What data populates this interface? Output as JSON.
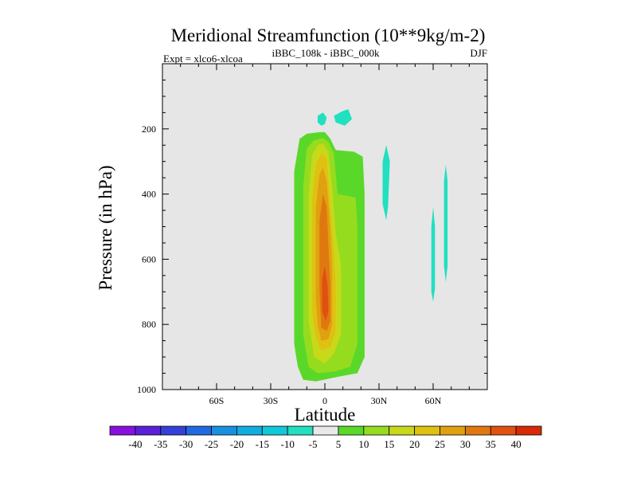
{
  "chart_data": {
    "type": "contour",
    "title": "Meridional Streamfunction (10**9kg/m-2)",
    "subtitle_left": "Expt = xlco6-xlcoa",
    "subtitle_center": "iBBC_108k - iBBC_000k",
    "subtitle_right": "DJF",
    "xlabel": "Latitude",
    "ylabel": "Pressure (in hPa)",
    "xlim": [
      -90,
      90
    ],
    "ylim": [
      1000,
      0
    ],
    "x_ticks": [
      {
        "value": -60,
        "label": "60S"
      },
      {
        "value": -30,
        "label": "30S"
      },
      {
        "value": 0,
        "label": "0"
      },
      {
        "value": 30,
        "label": "30N"
      },
      {
        "value": 60,
        "label": "60N"
      }
    ],
    "y_ticks": [
      {
        "value": 200,
        "label": "200"
      },
      {
        "value": 400,
        "label": "400"
      },
      {
        "value": 600,
        "label": "600"
      },
      {
        "value": 800,
        "label": "800"
      },
      {
        "value": 1000,
        "label": "1000"
      }
    ],
    "colorbar": {
      "labels": [
        "-40",
        "-35",
        "-30",
        "-25",
        "-20",
        "-15",
        "-10",
        "-5",
        "5",
        "10",
        "15",
        "20",
        "25",
        "30",
        "35",
        "40"
      ],
      "colors": [
        "#8a10e0",
        "#5a1fd8",
        "#3440d8",
        "#1f6ae0",
        "#1890e0",
        "#10aee0",
        "#10c8d8",
        "#20e0c0",
        "#e8e8e8",
        "#5ad82a",
        "#96dc1e",
        "#c8d81a",
        "#e0c010",
        "#e0a010",
        "#e07810",
        "#e05010",
        "#d82a08"
      ]
    },
    "regions": [
      {
        "level": 5,
        "color": "#5ad82a",
        "points": [
          [
            -17,
            860
          ],
          [
            -17,
            330
          ],
          [
            -14,
            230
          ],
          [
            -10,
            215
          ],
          [
            -3,
            210
          ],
          [
            0,
            210
          ],
          [
            3,
            230
          ],
          [
            6,
            265
          ],
          [
            16,
            270
          ],
          [
            21,
            285
          ],
          [
            22,
            400
          ],
          [
            22,
            900
          ],
          [
            18,
            950
          ],
          [
            8,
            960
          ],
          [
            -5,
            975
          ],
          [
            -12,
            970
          ],
          [
            -15,
            930
          ]
        ]
      },
      {
        "level": 10,
        "color": "#96dc1e",
        "points": [
          [
            -12,
            830
          ],
          [
            -12,
            380
          ],
          [
            -10,
            260
          ],
          [
            -6,
            235
          ],
          [
            -1,
            228
          ],
          [
            2,
            240
          ],
          [
            5,
            275
          ],
          [
            7,
            400
          ],
          [
            17,
            410
          ],
          [
            18,
            500
          ],
          [
            18,
            860
          ],
          [
            14,
            930
          ],
          [
            5,
            945
          ],
          [
            -4,
            950
          ],
          [
            -9,
            930
          ]
        ]
      },
      {
        "level": 15,
        "color": "#c8d81a",
        "points": [
          [
            -9,
            790
          ],
          [
            -9,
            400
          ],
          [
            -7,
            280
          ],
          [
            -4,
            250
          ],
          [
            -1,
            245
          ],
          [
            2,
            270
          ],
          [
            4,
            380
          ],
          [
            6,
            520
          ],
          [
            9,
            620
          ],
          [
            9,
            830
          ],
          [
            5,
            890
          ],
          [
            0,
            920
          ],
          [
            -6,
            900
          ]
        ]
      },
      {
        "level": 20,
        "color": "#e0c010",
        "points": [
          [
            -7,
            760
          ],
          [
            -7,
            420
          ],
          [
            -5,
            310
          ],
          [
            -2,
            275
          ],
          [
            1,
            290
          ],
          [
            3,
            440
          ],
          [
            5,
            580
          ],
          [
            6,
            680
          ],
          [
            6,
            820
          ],
          [
            3,
            870
          ],
          [
            -2,
            880
          ],
          [
            -5,
            840
          ]
        ]
      },
      {
        "level": 25,
        "color": "#e0a010",
        "points": [
          [
            -5,
            720
          ],
          [
            -5,
            440
          ],
          [
            -3,
            340
          ],
          [
            -1,
            320
          ],
          [
            1,
            360
          ],
          [
            3,
            500
          ],
          [
            4,
            620
          ],
          [
            4,
            800
          ],
          [
            2,
            845
          ],
          [
            -2,
            850
          ],
          [
            -4,
            800
          ]
        ]
      },
      {
        "level": 30,
        "color": "#e07810",
        "points": [
          [
            -3,
            690
          ],
          [
            -3,
            480
          ],
          [
            -1,
            400
          ],
          [
            1,
            440
          ],
          [
            2,
            560
          ],
          [
            3,
            680
          ],
          [
            3,
            790
          ],
          [
            1,
            820
          ],
          [
            -2,
            810
          ]
        ]
      },
      {
        "level": 35,
        "color": "#e05010",
        "points": [
          [
            -1.5,
            760
          ],
          [
            -1.5,
            660
          ],
          [
            0,
            620
          ],
          [
            1.5,
            680
          ],
          [
            2,
            760
          ],
          [
            0.5,
            790
          ]
        ]
      },
      {
        "level": -5,
        "color": "#20e0c0",
        "points": [
          [
            -4,
            160
          ],
          [
            -1,
            150
          ],
          [
            1,
            165
          ],
          [
            0,
            185
          ],
          [
            -2,
            190
          ],
          [
            -4,
            180
          ]
        ]
      },
      {
        "level": -5,
        "color": "#20e0c0",
        "points": [
          [
            5,
            160
          ],
          [
            10,
            145
          ],
          [
            13,
            140
          ],
          [
            15,
            170
          ],
          [
            11,
            190
          ],
          [
            6,
            180
          ]
        ]
      },
      {
        "level": -5,
        "color": "#20e0c0",
        "points": [
          [
            32,
            300
          ],
          [
            34,
            250
          ],
          [
            36,
            300
          ],
          [
            35,
            440
          ],
          [
            34,
            480
          ],
          [
            32,
            430
          ]
        ]
      },
      {
        "level": -5,
        "color": "#20e0c0",
        "points": [
          [
            59,
            500
          ],
          [
            60,
            440
          ],
          [
            61,
            500
          ],
          [
            61,
            690
          ],
          [
            60,
            730
          ],
          [
            59,
            700
          ]
        ]
      },
      {
        "level": -5,
        "color": "#20e0c0",
        "points": [
          [
            66,
            360
          ],
          [
            67,
            310
          ],
          [
            68,
            360
          ],
          [
            68,
            620
          ],
          [
            67,
            670
          ],
          [
            66,
            620
          ]
        ]
      }
    ]
  }
}
